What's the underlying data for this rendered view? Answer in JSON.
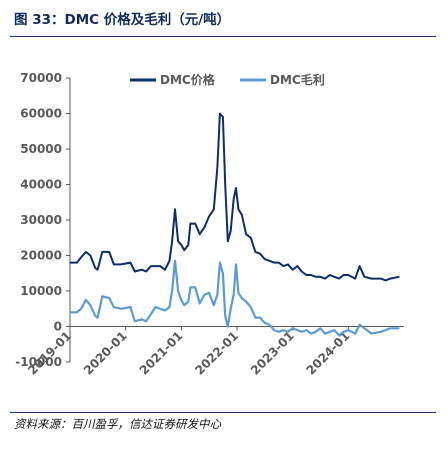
{
  "figure": {
    "title": "图 33：DMC 价格及毛利（元/吨）",
    "source": "资料来源：百川盈孚，信达证券研发中心"
  },
  "colors": {
    "price": "#0d2d6b",
    "margin": "#5b9bd5",
    "axis": "#595959"
  },
  "chart_data": {
    "type": "line",
    "title": "",
    "xlabel": "",
    "ylabel": "",
    "ylim": [
      -10000,
      70000
    ],
    "yticks": [
      -10000,
      0,
      10000,
      20000,
      30000,
      40000,
      50000,
      60000,
      70000
    ],
    "xlim": [
      "2019-01-01",
      "2024-12-31"
    ],
    "xticks": [
      {
        "label": "2019-01",
        "value": "2019-01-01"
      },
      {
        "label": "2020-01",
        "value": "2020-01-01"
      },
      {
        "label": "2021-01",
        "value": "2021-01-01"
      },
      {
        "label": "2022-01",
        "value": "2022-01-01"
      },
      {
        "label": "2023-01",
        "value": "2023-01-01"
      },
      {
        "label": "2024-01",
        "value": "2024-01-01"
      }
    ],
    "grid": false,
    "legend": "top",
    "series": [
      {
        "name": "DMC价格",
        "color": "#0d2d6b",
        "points": [
          [
            "2019-01-01",
            18000
          ],
          [
            "2019-02-15",
            18000
          ],
          [
            "2019-03-15",
            19500
          ],
          [
            "2019-04-15",
            21000
          ],
          [
            "2019-05-15",
            20000
          ],
          [
            "2019-06-15",
            16500
          ],
          [
            "2019-07-01",
            16000
          ],
          [
            "2019-08-01",
            21000
          ],
          [
            "2019-09-15",
            21000
          ],
          [
            "2019-10-15",
            17500
          ],
          [
            "2019-12-01",
            17500
          ],
          [
            "2020-02-01",
            18000
          ],
          [
            "2020-03-01",
            15500
          ],
          [
            "2020-04-15",
            16000
          ],
          [
            "2020-05-15",
            15500
          ],
          [
            "2020-06-15",
            17000
          ],
          [
            "2020-07-15",
            17000
          ],
          [
            "2020-08-15",
            17000
          ],
          [
            "2020-09-15",
            16000
          ],
          [
            "2020-10-15",
            18500
          ],
          [
            "2020-11-01",
            24000
          ],
          [
            "2020-11-20",
            33000
          ],
          [
            "2020-12-10",
            24000
          ],
          [
            "2020-12-31",
            23000
          ],
          [
            "2021-01-20",
            21500
          ],
          [
            "2021-02-15",
            23000
          ],
          [
            "2021-03-01",
            29000
          ],
          [
            "2021-04-01",
            29000
          ],
          [
            "2021-05-01",
            26000
          ],
          [
            "2021-06-01",
            28000
          ],
          [
            "2021-07-01",
            31000
          ],
          [
            "2021-08-01",
            33000
          ],
          [
            "2021-08-25",
            45000
          ],
          [
            "2021-09-10",
            60000
          ],
          [
            "2021-09-30",
            59000
          ],
          [
            "2021-10-15",
            40000
          ],
          [
            "2021-11-01",
            24000
          ],
          [
            "2021-11-20",
            27000
          ],
          [
            "2021-12-10",
            36000
          ],
          [
            "2021-12-25",
            39000
          ],
          [
            "2022-01-10",
            33000
          ],
          [
            "2022-02-01",
            31500
          ],
          [
            "2022-03-01",
            26000
          ],
          [
            "2022-04-01",
            25000
          ],
          [
            "2022-05-01",
            21000
          ],
          [
            "2022-06-01",
            20500
          ],
          [
            "2022-07-01",
            19000
          ],
          [
            "2022-08-01",
            18500
          ],
          [
            "2022-09-01",
            18000
          ],
          [
            "2022-10-01",
            18000
          ],
          [
            "2022-11-01",
            17000
          ],
          [
            "2022-12-01",
            17500
          ],
          [
            "2023-01-01",
            16000
          ],
          [
            "2023-02-01",
            17000
          ],
          [
            "2023-03-01",
            15500
          ],
          [
            "2023-04-01",
            14500
          ],
          [
            "2023-05-01",
            14500
          ],
          [
            "2023-06-01",
            14000
          ],
          [
            "2023-07-01",
            14000
          ],
          [
            "2023-08-01",
            13500
          ],
          [
            "2023-09-01",
            14500
          ],
          [
            "2023-10-01",
            14000
          ],
          [
            "2023-11-01",
            13500
          ],
          [
            "2023-12-01",
            14500
          ],
          [
            "2024-01-01",
            14500
          ],
          [
            "2024-02-15",
            13500
          ],
          [
            "2024-03-15",
            17000
          ],
          [
            "2024-04-15",
            14000
          ],
          [
            "2024-06-01",
            13500
          ],
          [
            "2024-08-01",
            13500
          ],
          [
            "2024-09-01",
            13000
          ],
          [
            "2024-10-01",
            13500
          ],
          [
            "2024-12-01",
            14000
          ]
        ]
      },
      {
        "name": "DMC毛利",
        "color": "#5b9bd5",
        "points": [
          [
            "2019-01-01",
            4000
          ],
          [
            "2019-02-15",
            4000
          ],
          [
            "2019-03-15",
            5000
          ],
          [
            "2019-04-15",
            7500
          ],
          [
            "2019-05-15",
            6000
          ],
          [
            "2019-06-15",
            3000
          ],
          [
            "2019-07-01",
            2500
          ],
          [
            "2019-08-01",
            8500
          ],
          [
            "2019-09-15",
            8000
          ],
          [
            "2019-10-15",
            5500
          ],
          [
            "2019-12-01",
            5000
          ],
          [
            "2020-02-01",
            5500
          ],
          [
            "2020-03-01",
            1500
          ],
          [
            "2020-04-15",
            2000
          ],
          [
            "2020-05-15",
            1500
          ],
          [
            "2020-06-15",
            3500
          ],
          [
            "2020-07-15",
            5500
          ],
          [
            "2020-08-15",
            5000
          ],
          [
            "2020-09-15",
            4500
          ],
          [
            "2020-10-15",
            5500
          ],
          [
            "2020-11-01",
            10000
          ],
          [
            "2020-11-20",
            18500
          ],
          [
            "2020-12-10",
            10000
          ],
          [
            "2020-12-31",
            7500
          ],
          [
            "2021-01-20",
            6000
          ],
          [
            "2021-02-15",
            7000
          ],
          [
            "2021-03-01",
            11000
          ],
          [
            "2021-04-01",
            11000
          ],
          [
            "2021-05-01",
            6500
          ],
          [
            "2021-06-01",
            9000
          ],
          [
            "2021-07-01",
            9500
          ],
          [
            "2021-08-01",
            6000
          ],
          [
            "2021-08-25",
            9000
          ],
          [
            "2021-09-10",
            18000
          ],
          [
            "2021-09-30",
            15000
          ],
          [
            "2021-10-15",
            3000
          ],
          [
            "2021-11-01",
            0
          ],
          [
            "2021-11-20",
            5000
          ],
          [
            "2021-12-10",
            9000
          ],
          [
            "2021-12-25",
            17500
          ],
          [
            "2022-01-10",
            9500
          ],
          [
            "2022-02-01",
            8000
          ],
          [
            "2022-03-01",
            7000
          ],
          [
            "2022-04-01",
            5500
          ],
          [
            "2022-05-01",
            2500
          ],
          [
            "2022-06-01",
            2500
          ],
          [
            "2022-07-01",
            1000
          ],
          [
            "2022-08-01",
            500
          ],
          [
            "2022-09-01",
            -1000
          ],
          [
            "2022-10-01",
            -1500
          ],
          [
            "2022-11-01",
            -1000
          ],
          [
            "2022-12-01",
            -1500
          ],
          [
            "2023-01-01",
            -500
          ],
          [
            "2023-02-01",
            -1000
          ],
          [
            "2023-03-01",
            -1500
          ],
          [
            "2023-04-01",
            -1000
          ],
          [
            "2023-05-01",
            -2000
          ],
          [
            "2023-06-01",
            -1500
          ],
          [
            "2023-07-01",
            -500
          ],
          [
            "2023-08-01",
            -2000
          ],
          [
            "2023-09-01",
            -1500
          ],
          [
            "2023-10-01",
            -1000
          ],
          [
            "2023-11-01",
            -2500
          ],
          [
            "2023-12-01",
            -1500
          ],
          [
            "2024-01-01",
            -1000
          ],
          [
            "2024-02-15",
            -2000
          ],
          [
            "2024-03-15",
            500
          ],
          [
            "2024-04-15",
            -500
          ],
          [
            "2024-06-01",
            -2000
          ],
          [
            "2024-08-01",
            -1500
          ],
          [
            "2024-09-01",
            -1000
          ],
          [
            "2024-10-01",
            -500
          ],
          [
            "2024-12-01",
            -500
          ]
        ]
      }
    ]
  }
}
